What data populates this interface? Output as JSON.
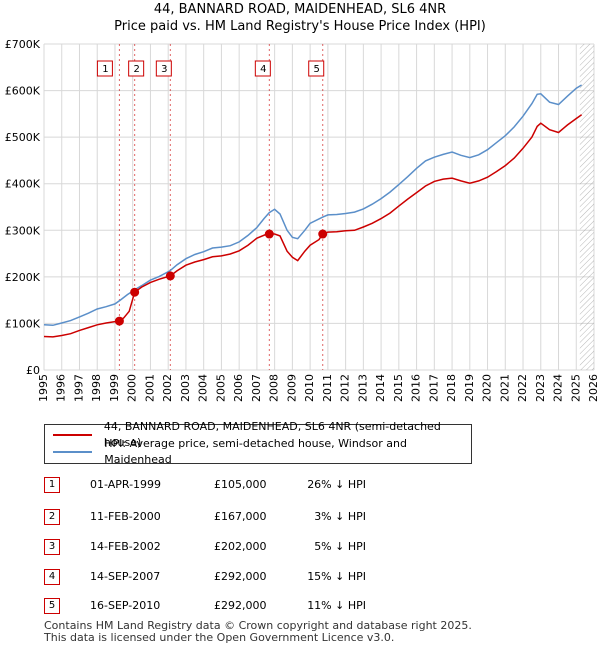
{
  "title_line1": "44, BANNARD ROAD, MAIDENHEAD, SL6 4NR",
  "title_line2": "Price paid vs. HM Land Registry's House Price Index (HPI)",
  "colors": {
    "property": "#cc0000",
    "hpi": "#5b8fc9",
    "grid": "#d8d8d8",
    "marker_line": "#cc0000",
    "hatch": "#999999"
  },
  "legend": [
    {
      "label": "44, BANNARD ROAD, MAIDENHEAD, SL6 4NR (semi-detached house)",
      "color": "#cc0000"
    },
    {
      "label": "HPI: Average price, semi-detached house, Windsor and Maidenhead",
      "color": "#5b8fc9"
    }
  ],
  "sales": [
    {
      "num": "1",
      "date": "01-APR-1999",
      "price": "£105,000",
      "hpi": "26% ↓ HPI"
    },
    {
      "num": "2",
      "date": "11-FEB-2000",
      "price": "£167,000",
      "hpi": "3% ↓ HPI"
    },
    {
      "num": "3",
      "date": "14-FEB-2002",
      "price": "£202,000",
      "hpi": "5% ↓ HPI"
    },
    {
      "num": "4",
      "date": "14-SEP-2007",
      "price": "£292,000",
      "hpi": "15% ↓ HPI"
    },
    {
      "num": "5",
      "date": "16-SEP-2010",
      "price": "£292,000",
      "hpi": "11% ↓ HPI"
    }
  ],
  "footer_line1": "Contains HM Land Registry data © Crown copyright and database right 2025.",
  "footer_line2": "This data is licensed under the Open Government Licence v3.0.",
  "chart_data": {
    "type": "line",
    "title": "44, BANNARD ROAD, MAIDENHEAD, SL6 4NR",
    "subtitle": "Price paid vs. HM Land Registry's House Price Index (HPI)",
    "xlabel": "",
    "ylabel": "",
    "xlim": [
      1995,
      2026
    ],
    "ylim": [
      0,
      700000
    ],
    "y_ticks": [
      0,
      100000,
      200000,
      300000,
      400000,
      500000,
      600000,
      700000
    ],
    "y_tick_labels": [
      "£0",
      "£100K",
      "£200K",
      "£300K",
      "£400K",
      "£500K",
      "£600K",
      "£700K"
    ],
    "x_ticks": [
      "1995",
      "1996",
      "1997",
      "1998",
      "1999",
      "2000",
      "2001",
      "2002",
      "2003",
      "2004",
      "2005",
      "2006",
      "2007",
      "2008",
      "2009",
      "2010",
      "2011",
      "2012",
      "2013",
      "2014",
      "2015",
      "2016",
      "2017",
      "2018",
      "2019",
      "2020",
      "2021",
      "2022",
      "2023",
      "2024",
      "2025",
      "2026"
    ],
    "grid": true,
    "future_hatch_from": 2025.2,
    "series": [
      {
        "name": "HPI: Average price, semi-detached house, Windsor and Maidenhead",
        "color": "#5b8fc9",
        "x": [
          1995.0,
          1995.5,
          1996.0,
          1996.5,
          1997.0,
          1997.5,
          1998.0,
          1998.5,
          1999.0,
          1999.3,
          1999.7,
          2000.1,
          2000.5,
          2001.0,
          2001.5,
          2002.1,
          2002.5,
          2003.0,
          2003.5,
          2004.0,
          2004.5,
          2005.0,
          2005.5,
          2006.0,
          2006.5,
          2007.0,
          2007.4,
          2007.7,
          2008.0,
          2008.3,
          2008.7,
          2009.0,
          2009.3,
          2009.7,
          2010.0,
          2010.7,
          2011.0,
          2011.5,
          2012.0,
          2012.5,
          2013.0,
          2013.5,
          2014.0,
          2014.5,
          2015.0,
          2015.5,
          2016.0,
          2016.5,
          2017.0,
          2017.5,
          2018.0,
          2018.5,
          2019.0,
          2019.5,
          2020.0,
          2020.5,
          2021.0,
          2021.5,
          2022.0,
          2022.5,
          2022.8,
          2023.0,
          2023.5,
          2024.0,
          2024.5,
          2025.0,
          2025.3
        ],
        "values": [
          97000,
          96000,
          101000,
          106000,
          114000,
          122000,
          131000,
          136000,
          142000,
          150000,
          162000,
          172000,
          181000,
          193000,
          201000,
          213000,
          226000,
          239000,
          248000,
          254000,
          262000,
          264000,
          267000,
          275000,
          289000,
          306000,
          325000,
          338000,
          345000,
          335000,
          300000,
          285000,
          282000,
          300000,
          315000,
          328000,
          333000,
          334000,
          336000,
          339000,
          346000,
          356000,
          368000,
          382000,
          398000,
          415000,
          433000,
          449000,
          457000,
          463000,
          468000,
          461000,
          456000,
          462000,
          473000,
          488000,
          503000,
          522000,
          545000,
          572000,
          592000,
          593000,
          575000,
          570000,
          588000,
          605000,
          612000
        ]
      },
      {
        "name": "44, BANNARD ROAD, MAIDENHEAD, SL6 4NR (semi-detached house)",
        "color": "#cc0000",
        "x": [
          1995.0,
          1995.5,
          1996.0,
          1996.5,
          1997.0,
          1997.5,
          1998.0,
          1998.5,
          1999.0,
          1999.25,
          1999.5,
          1999.8,
          2000.11,
          2000.5,
          2001.0,
          2001.5,
          2002.12,
          2002.5,
          2003.0,
          2003.5,
          2004.0,
          2004.5,
          2005.0,
          2005.5,
          2006.0,
          2006.5,
          2007.0,
          2007.5,
          2007.7,
          2008.0,
          2008.3,
          2008.7,
          2009.0,
          2009.3,
          2009.7,
          2010.0,
          2010.5,
          2010.71,
          2011.0,
          2011.5,
          2012.0,
          2012.5,
          2013.0,
          2013.5,
          2014.0,
          2014.5,
          2015.0,
          2015.5,
          2016.0,
          2016.5,
          2017.0,
          2017.5,
          2018.0,
          2018.5,
          2019.0,
          2019.5,
          2020.0,
          2020.5,
          2021.0,
          2021.5,
          2022.0,
          2022.5,
          2022.8,
          2023.0,
          2023.5,
          2024.0,
          2024.5,
          2025.0,
          2025.3
        ],
        "values": [
          72000,
          71000,
          74000,
          78000,
          85000,
          91000,
          97000,
          101000,
          104000,
          105000,
          112000,
          126000,
          167000,
          178000,
          188000,
          195000,
          202000,
          213000,
          225000,
          232000,
          237000,
          243000,
          245000,
          249000,
          256000,
          268000,
          283000,
          291000,
          292000,
          292000,
          288000,
          255000,
          242000,
          235000,
          255000,
          268000,
          280000,
          292000,
          296000,
          297000,
          299000,
          300000,
          307000,
          315000,
          325000,
          337000,
          352000,
          367000,
          381000,
          395000,
          405000,
          410000,
          412000,
          406000,
          401000,
          406000,
          414000,
          426000,
          439000,
          455000,
          476000,
          500000,
          523000,
          530000,
          516000,
          510000,
          526000,
          540000,
          548000
        ]
      }
    ],
    "sales": [
      {
        "label": "1",
        "x": 1999.25,
        "y": 105000
      },
      {
        "label": "2",
        "x": 2000.11,
        "y": 167000
      },
      {
        "label": "3",
        "x": 2002.12,
        "y": 202000
      },
      {
        "label": "4",
        "x": 2007.7,
        "y": 292000
      },
      {
        "label": "5",
        "x": 2010.71,
        "y": 292000
      }
    ]
  }
}
